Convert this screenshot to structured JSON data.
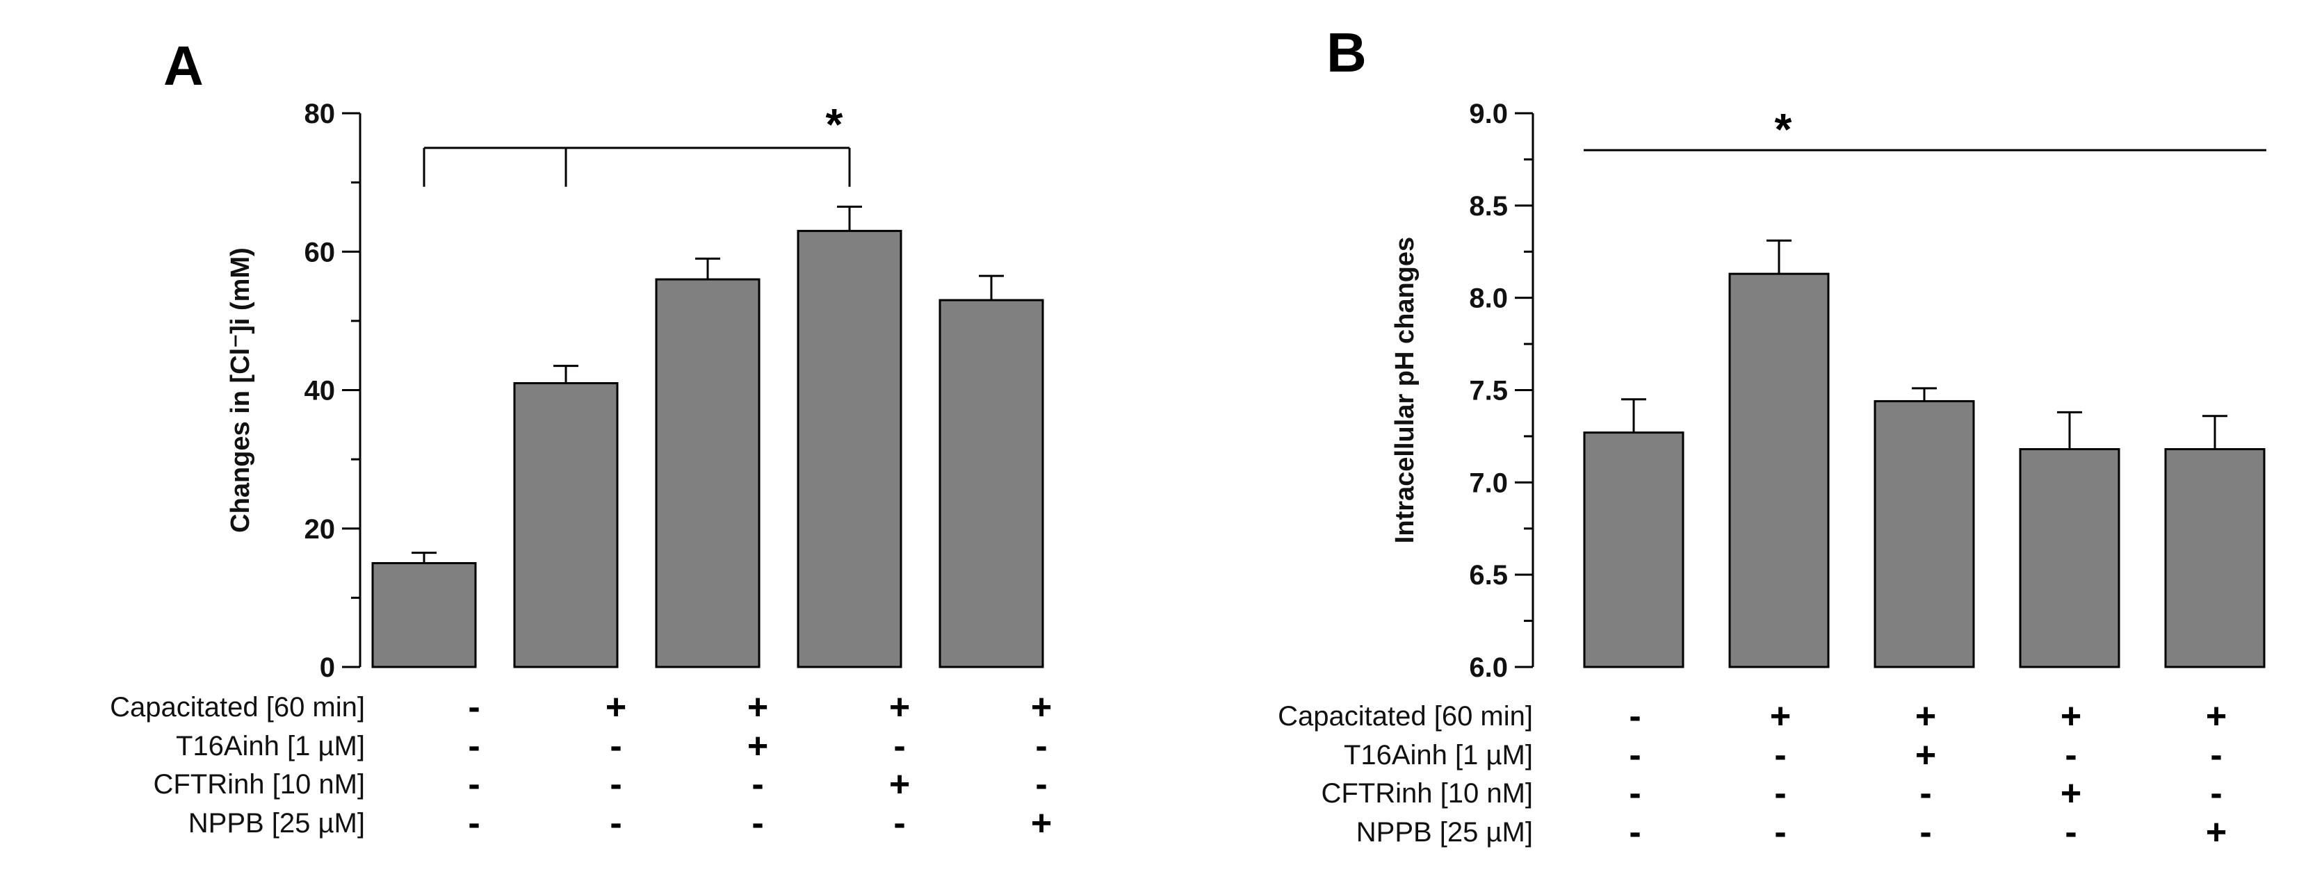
{
  "chart_data": [
    {
      "type": "bar",
      "panel_label": "A",
      "ylabel": "Changes in [Cl⁻]i (mM)",
      "ylim": [
        0,
        80
      ],
      "yticks": [
        "0",
        "20",
        "40",
        "60",
        "80"
      ],
      "ytick_values": [
        0,
        20,
        40,
        60,
        80
      ],
      "values": [
        15,
        41,
        56,
        63,
        53
      ],
      "errors": [
        1.5,
        2.5,
        3,
        3.5,
        3.5
      ],
      "significance": {
        "label": "*",
        "groups": [
          0,
          1,
          3
        ],
        "y_level": 75
      },
      "conditions": [
        {
          "label": "Capacitated [60 min]",
          "signs": [
            "-",
            "+",
            "+",
            "+",
            "+"
          ]
        },
        {
          "label": "T16Ainh [1 µM]",
          "signs": [
            "-",
            "-",
            "+",
            "-",
            "-"
          ]
        },
        {
          "label": "CFTRinh [10 nM]",
          "signs": [
            "-",
            "-",
            "-",
            "+",
            "-"
          ]
        },
        {
          "label": "NPPB    [25 µM]",
          "signs": [
            "-",
            "-",
            "-",
            "-",
            "+"
          ]
        }
      ]
    },
    {
      "type": "bar",
      "panel_label": "B",
      "ylabel": "Intracellular pH changes",
      "ylim": [
        6.0,
        9.0
      ],
      "yticks": [
        "6.0",
        "6.5",
        "7.0",
        "7.5",
        "8.0",
        "8.5",
        "9.0"
      ],
      "ytick_values": [
        6.0,
        6.5,
        7.0,
        7.5,
        8.0,
        8.5,
        9.0
      ],
      "values": [
        7.27,
        8.13,
        7.44,
        7.18,
        7.18
      ],
      "errors": [
        0.18,
        0.18,
        0.07,
        0.2,
        0.18
      ],
      "significance": {
        "label": "*",
        "groups": "all",
        "y_level": 8.8
      },
      "conditions": [
        {
          "label": "Capacitated [60 min]",
          "signs": [
            "-",
            "+",
            "+",
            "+",
            "+"
          ]
        },
        {
          "label": "T16Ainh [1 µM]",
          "signs": [
            "-",
            "-",
            "+",
            "-",
            "-"
          ]
        },
        {
          "label": "CFTRinh [10 nM]",
          "signs": [
            "-",
            "-",
            "-",
            "+",
            "-"
          ]
        },
        {
          "label": "NPPB    [25 µM]",
          "signs": [
            "-",
            "-",
            "-",
            "-",
            "+"
          ]
        }
      ]
    }
  ]
}
